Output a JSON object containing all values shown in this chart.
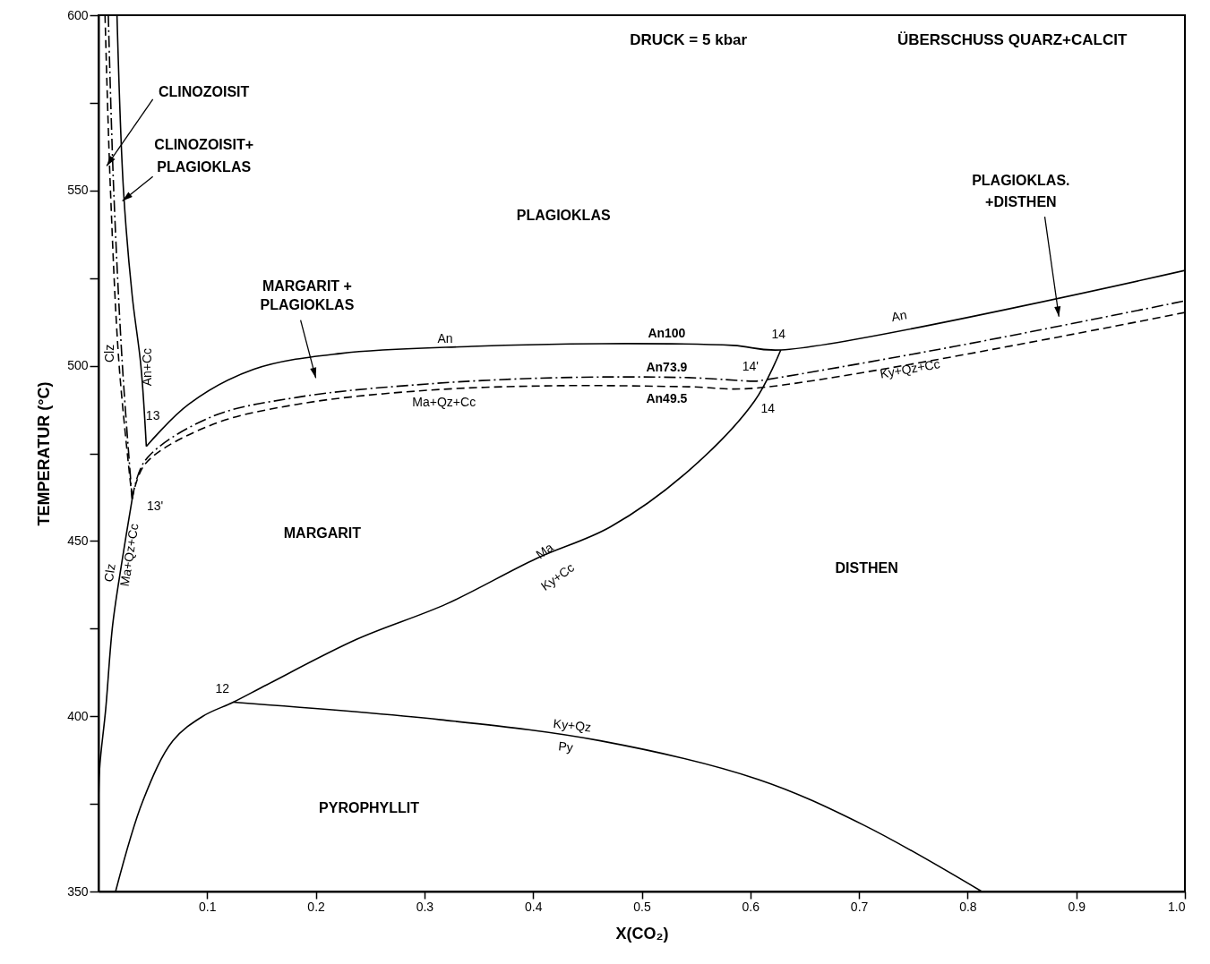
{
  "chart_data": {
    "type": "line",
    "xlabel": "X(CO₂)",
    "ylabel": "TEMPERATUR (°C)",
    "xlim": [
      0,
      1
    ],
    "ylim": [
      350,
      600
    ],
    "xticks": [
      0.1,
      0.2,
      0.3,
      0.4,
      0.5,
      0.6,
      0.7,
      0.8,
      0.9,
      {
        "value": 1,
        "label": "1.0"
      }
    ],
    "yticks": [
      350,
      {
        "value": 375,
        "label": null
      },
      400,
      {
        "value": 425,
        "label": null
      },
      450,
      {
        "value": 475,
        "label": null
      },
      500,
      {
        "value": 525,
        "label": null
      },
      550,
      {
        "value": 575,
        "label": null
      },
      600
    ],
    "grid": false,
    "marker": "none",
    "series": [
      {
        "color": "#000000",
        "line_style": "solid",
        "x": [
          0.017,
          0.023,
          0.031,
          0.039,
          0.044
        ],
        "values": [
          600,
          550,
          520,
          500,
          477
        ]
      },
      {
        "color": "#000000",
        "line_style": "dashed",
        "x": [
          0.006,
          0.011,
          0.019,
          0.031
        ],
        "values": [
          600,
          550,
          500,
          462
        ]
      },
      {
        "color": "#000000",
        "line_style": "dashdot",
        "x": [
          0.009,
          0.014,
          0.022,
          0.031
        ],
        "values": [
          600,
          550,
          500,
          462
        ]
      },
      {
        "color": "#000000",
        "line_style": "solid",
        "x": [
          0.031,
          0.0215,
          0.013,
          0.0066,
          0.001,
          0
        ],
        "values": [
          462,
          444,
          426,
          402,
          385,
          372
        ]
      },
      {
        "color": "#000000",
        "line_style": "solid",
        "x": [
          0.0157,
          0.041,
          0.0685,
          0.096,
          0.124,
          0.155,
          0.238,
          0.32,
          0.403,
          0.471,
          0.543,
          0.604,
          0.628
        ],
        "values": [
          350,
          376,
          393,
          400,
          404,
          409,
          422,
          432,
          445,
          454,
          470,
          490,
          504.5
        ]
      },
      {
        "color": "#000000",
        "line_style": "solid",
        "x": [
          0.124,
          0.315,
          0.462,
          0.607,
          0.704,
          0.813
        ],
        "values": [
          404,
          399,
          393,
          382,
          369,
          350
        ]
      },
      {
        "color": "#000000",
        "line_style": "solid",
        "x": [
          0.044,
          0.083,
          0.143,
          0.223,
          0.343,
          0.463,
          0.584,
          0.628,
          1.0
        ],
        "values": [
          477,
          489,
          499,
          503.5,
          505.5,
          506.3,
          505.8,
          504.5,
          527.2
        ]
      },
      {
        "color": "#000000",
        "line_style": "dashdot",
        "x": [
          0.031,
          0.043,
          0.103,
          0.183,
          0.303,
          0.424,
          0.543,
          0.604,
          0.61,
          0.788,
          1.0
        ],
        "values": [
          462,
          473,
          485.3,
          491,
          494.8,
          496.6,
          496.6,
          495.6,
          495.8,
          505.5,
          518.5
        ]
      },
      {
        "color": "#000000",
        "line_style": "dashed",
        "x": [
          0.031,
          0.043,
          0.103,
          0.183,
          0.303,
          0.424,
          0.543,
          0.604,
          1.0
        ],
        "values": [
          462,
          472,
          483,
          489,
          493,
          494.3,
          494,
          493.6,
          515.2
        ]
      }
    ],
    "annotations": [
      "DRUCK = 5 kbar",
      "ÜBERSCHUSS QUARZ+CALCIT",
      {
        "text": "CLINOZOISIT",
        "x": 0.0075,
        "y": 557
      },
      "CLINOZOISIT+",
      {
        "text": "PLAGIOKLAS",
        "x": 0.022,
        "y": 547
      },
      "PLAGIOKLAS",
      "MARGARIT +",
      "PLAGIOKLAS",
      "PLAGIOKLAS.",
      "+DISTHEN",
      "MARGARIT",
      "DISTHEN",
      "PYROPHYLLIT",
      "An",
      "An100",
      "An73.9",
      "An49.5",
      "Ma+Qz+Cc",
      "An",
      "Ky+Qz+Cc",
      "Clz",
      "An+Cc",
      "Clz",
      "Ma+Qz+Cc",
      "Ma",
      "Ky+Cc",
      "Ky+Qz",
      "Py",
      "12",
      "13",
      "13'",
      "14",
      "14'",
      "14"
    ]
  }
}
